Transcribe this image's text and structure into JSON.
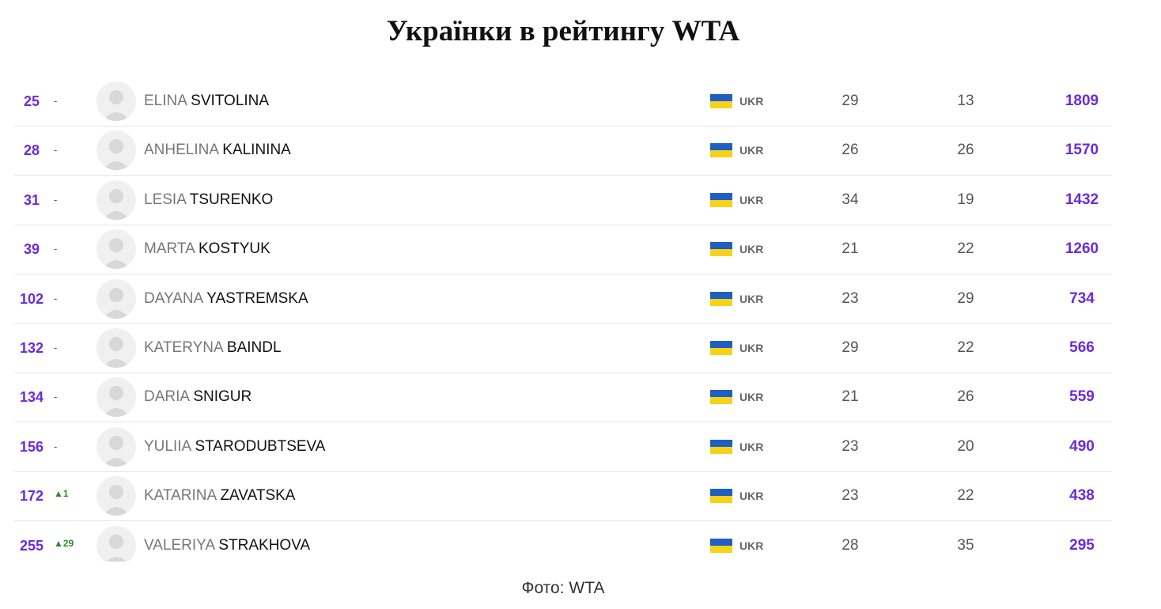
{
  "title": "Українки в рейтингу WTA",
  "table": {
    "rows": [
      {
        "rank": 25,
        "move": "-",
        "first": "ELINA",
        "last": "SVITOLINA",
        "country": "UKR",
        "age": 29,
        "tournaments": 13,
        "points": 1809
      },
      {
        "rank": 28,
        "move": "-",
        "first": "ANHELINA",
        "last": "KALININA",
        "country": "UKR",
        "age": 26,
        "tournaments": 26,
        "points": 1570
      },
      {
        "rank": 31,
        "move": "-",
        "first": "LESIA",
        "last": "TSURENKO",
        "country": "UKR",
        "age": 34,
        "tournaments": 19,
        "points": 1432
      },
      {
        "rank": 39,
        "move": "-",
        "first": "MARTA",
        "last": "KOSTYUK",
        "country": "UKR",
        "age": 21,
        "tournaments": 22,
        "points": 1260
      },
      {
        "rank": 102,
        "move": "-",
        "first": "DAYANA",
        "last": "YASTREMSKA",
        "country": "UKR",
        "age": 23,
        "tournaments": 29,
        "points": 734
      },
      {
        "rank": 132,
        "move": "-",
        "first": "KATERYNA",
        "last": "BAINDL",
        "country": "UKR",
        "age": 29,
        "tournaments": 22,
        "points": 566
      },
      {
        "rank": 134,
        "move": "-",
        "first": "DARIA",
        "last": "SNIGUR",
        "country": "UKR",
        "age": 21,
        "tournaments": 26,
        "points": 559
      },
      {
        "rank": 156,
        "move": "-",
        "first": "YULIIA",
        "last": "STARODUBTSEVA",
        "country": "UKR",
        "age": 23,
        "tournaments": 20,
        "points": 490
      },
      {
        "rank": 172,
        "move": "▲1",
        "first": "KATARINA",
        "last": "ZAVATSKA",
        "country": "UKR",
        "age": 23,
        "tournaments": 22,
        "points": 438
      },
      {
        "rank": 255,
        "move": "▲29",
        "first": "VALERIYA",
        "last": "STRAKHOVA",
        "country": "UKR",
        "age": 28,
        "tournaments": 35,
        "points": 295
      }
    ]
  },
  "caption": "Фото: WTA"
}
